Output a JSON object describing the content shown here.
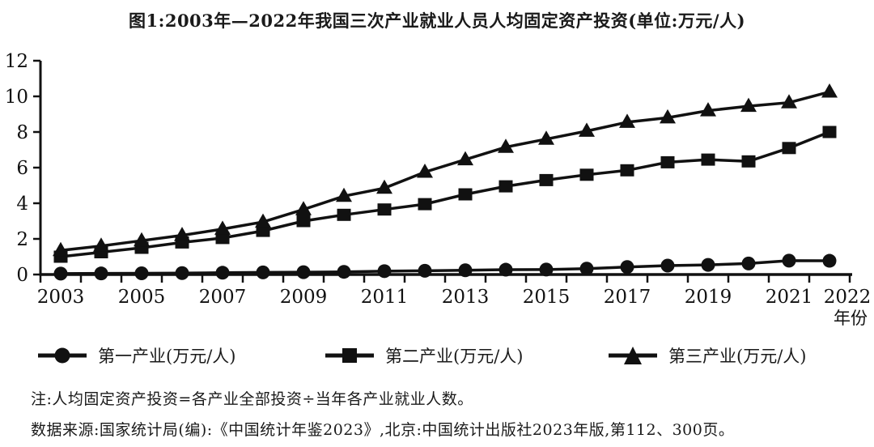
{
  "title": "图1:2003年—2022年我国三次产业就业人员人均固定资产投资(单位:万元/人)",
  "chart_data": {
    "type": "line",
    "title": "图1:2003年—2022年我国三次产业就业人员人均固定资产投资(单位:万元/人)",
    "xlabel": "年份",
    "ylabel": "",
    "x": [
      2003,
      2004,
      2005,
      2006,
      2007,
      2008,
      2009,
      2010,
      2011,
      2012,
      2013,
      2014,
      2015,
      2016,
      2017,
      2018,
      2019,
      2020,
      2021,
      2022
    ],
    "x_tick_labels": [
      "2003",
      "2005",
      "2007",
      "2009",
      "2011",
      "2013",
      "2015",
      "2017",
      "2019",
      "2021",
      "2022"
    ],
    "y_ticks": [
      0,
      2,
      4,
      6,
      8,
      10,
      12
    ],
    "ylim": [
      0,
      12
    ],
    "grid": false,
    "legend_position": "bottom",
    "line_color": "#111111",
    "series": [
      {
        "name": "第一产业(万元/人)",
        "marker": "circle",
        "values": [
          0.05,
          0.06,
          0.07,
          0.08,
          0.1,
          0.12,
          0.13,
          0.15,
          0.19,
          0.21,
          0.24,
          0.27,
          0.28,
          0.33,
          0.42,
          0.5,
          0.54,
          0.62,
          0.78,
          0.77
        ]
      },
      {
        "name": "第二产业(万元/人)",
        "marker": "square",
        "values": [
          1.0,
          1.25,
          1.5,
          1.8,
          2.05,
          2.45,
          3.0,
          3.35,
          3.65,
          3.95,
          4.5,
          4.95,
          5.3,
          5.6,
          5.85,
          6.3,
          6.45,
          6.35,
          7.1,
          8.0
        ]
      },
      {
        "name": "第三产业(万元/人)",
        "marker": "triangle",
        "values": [
          1.35,
          1.6,
          1.9,
          2.2,
          2.55,
          2.95,
          3.65,
          4.4,
          4.85,
          5.75,
          6.45,
          7.15,
          7.6,
          8.05,
          8.55,
          8.8,
          9.2,
          9.45,
          9.65,
          10.25
        ]
      }
    ]
  },
  "legend": {
    "items": [
      {
        "label": "第一产业(万元/人)",
        "marker": "circle"
      },
      {
        "label": "第二产业(万元/人)",
        "marker": "square"
      },
      {
        "label": "第三产业(万元/人)",
        "marker": "triangle"
      }
    ]
  },
  "notes": {
    "note": "注:人均固定资产投资=各产业全部投资÷当年各产业就业人数。",
    "source": "数据来源:国家统计局(编):《中国统计年鉴2023》,北京:中国统计出版社2023年版,第112、300页。"
  }
}
